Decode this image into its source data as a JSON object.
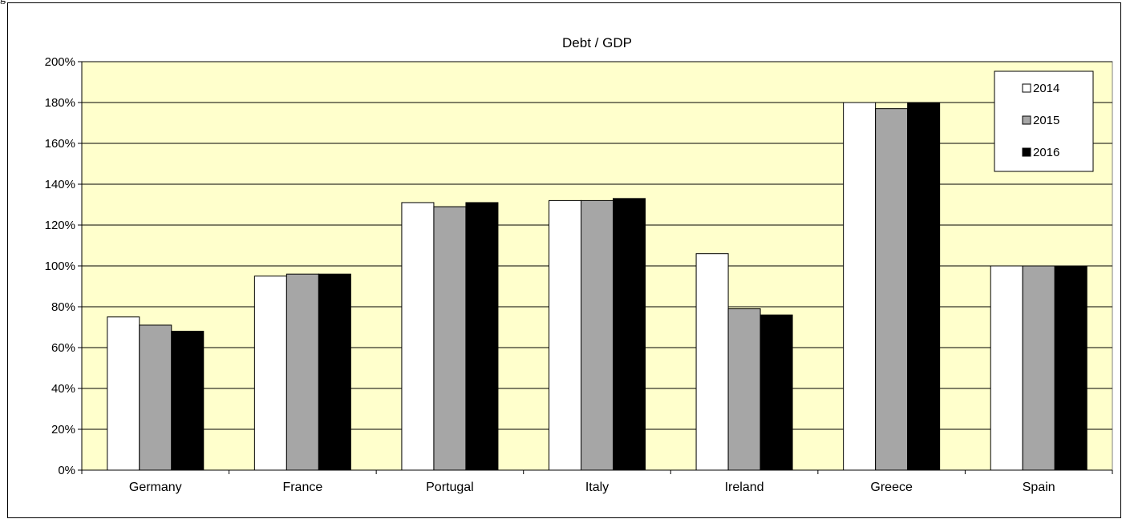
{
  "top_fragment": "g",
  "chart_data": {
    "type": "bar",
    "title": "Debt / GDP",
    "xlabel": "",
    "ylabel": "",
    "categories": [
      "Germany",
      "France",
      "Portugal",
      "Italy",
      "Ireland",
      "Greece",
      "Spain"
    ],
    "series": [
      {
        "name": "2014",
        "values": [
          75,
          95,
          131,
          132,
          106,
          180,
          100
        ],
        "color": "#ffffff"
      },
      {
        "name": "2015",
        "values": [
          71,
          96,
          129,
          132,
          79,
          177,
          100
        ],
        "color": "#a6a6a6"
      },
      {
        "name": "2016",
        "values": [
          68,
          96,
          131,
          133,
          76,
          180,
          100
        ],
        "color": "#000000"
      }
    ],
    "ylim": [
      0,
      200
    ],
    "ytick_step": 20,
    "ytick_labels": [
      "0%",
      "20%",
      "40%",
      "60%",
      "80%",
      "100%",
      "120%",
      "140%",
      "160%",
      "180%",
      "200%"
    ],
    "grid": true,
    "legend_position": "top-right",
    "plot_background": "#ffffcc"
  }
}
